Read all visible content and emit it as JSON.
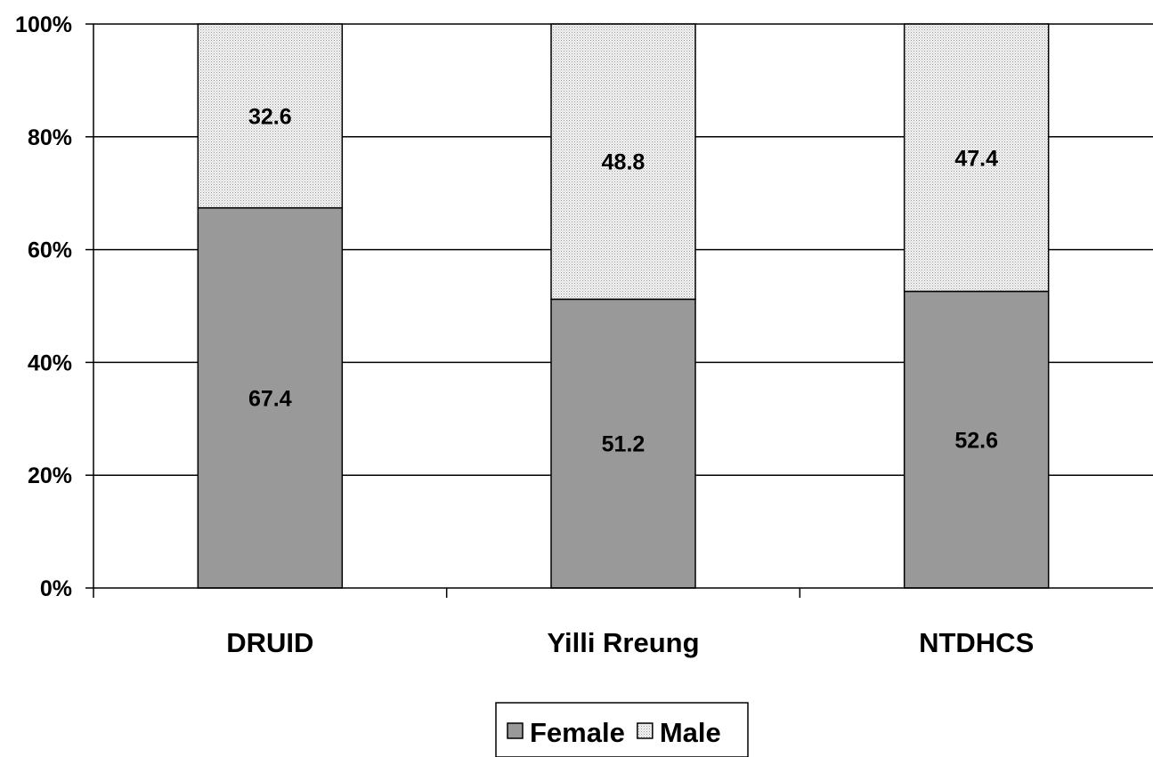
{
  "chart_data": {
    "type": "bar",
    "stacked": true,
    "percent": true,
    "categories": [
      "DRUID",
      "Yilli Rreung",
      "NTDHCS"
    ],
    "series": [
      {
        "name": "Female",
        "values": [
          67.4,
          51.2,
          52.6
        ],
        "color": "#999999",
        "pattern": "solid"
      },
      {
        "name": "Male",
        "values": [
          32.6,
          48.8,
          47.4
        ],
        "color": "#e8e8e8",
        "pattern": "dots"
      }
    ],
    "yticks": [
      "0%",
      "20%",
      "40%",
      "60%",
      "80%",
      "100%"
    ],
    "ylim": [
      0,
      100
    ],
    "grid": true,
    "legend": "bottom"
  }
}
